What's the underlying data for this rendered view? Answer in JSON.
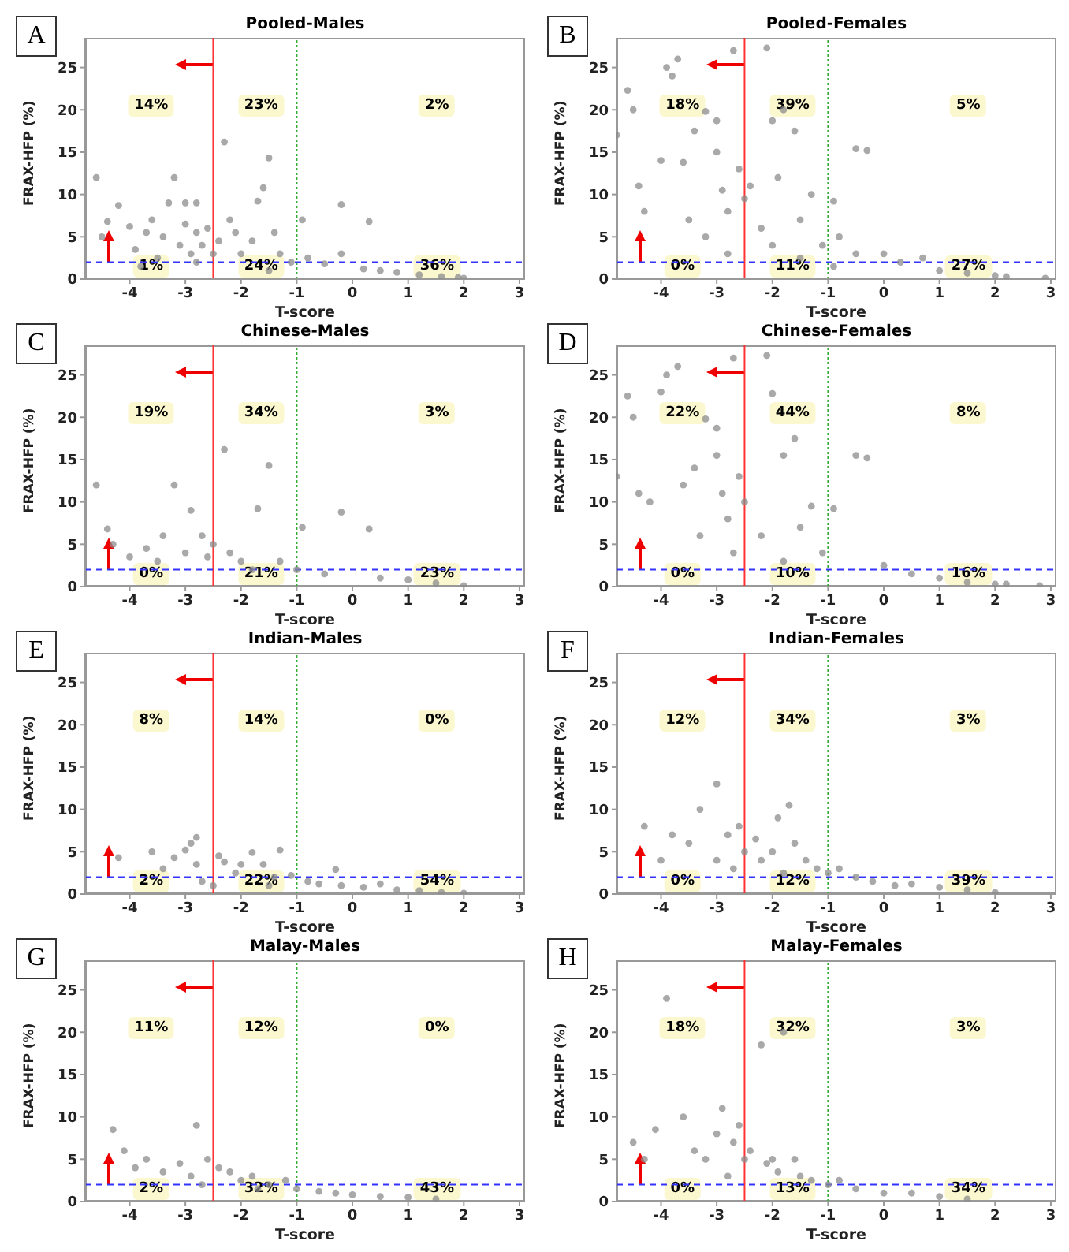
{
  "chart_data": [
    {
      "type": "scatter",
      "title": "Pooled-Males",
      "xlabel": "T-score",
      "ylabel": "FRAX-HFP (%)",
      "color": "#8c8c8c",
      "marker": "circle",
      "xlim": [
        -4.8,
        3.1
      ],
      "ylim": [
        0,
        28.5
      ],
      "xticks": [
        -4,
        -3,
        -2,
        -1,
        0,
        1,
        2,
        3
      ],
      "yticks": [
        0,
        5,
        10,
        15,
        20,
        25
      ],
      "ref_lines": [
        {
          "axis": "x",
          "value": -2.5,
          "color": "#ff3333",
          "line_style": "solid"
        },
        {
          "axis": "x",
          "value": -1,
          "color": "#33aa33",
          "line_style": "dotted"
        },
        {
          "axis": "y",
          "value": 2,
          "color": "#3333ff",
          "line_style": "dashed"
        }
      ],
      "annotations": [
        "A",
        "14%",
        "23%",
        "2%",
        "1%",
        "24%",
        "36%"
      ],
      "x": [
        -4.6,
        -4.4,
        -4.5,
        -4.2,
        -4.0,
        -3.9,
        -3.7,
        -3.6,
        -3.4,
        -3.3,
        -3.2,
        -3.1,
        -3.0,
        -3.0,
        -2.8,
        -2.9,
        -2.8,
        -2.7,
        -2.6,
        -2.5,
        -2.4,
        -2.3,
        -2.2,
        -2.1,
        -2.0,
        -1.8,
        -1.7,
        -1.6,
        -1.5,
        -1.4,
        -1.3,
        -1.1,
        -0.9,
        -0.8,
        -0.5,
        -0.2,
        -0.2,
        0.3,
        0.2,
        0.5,
        0.8,
        1.2,
        1.6,
        1.9,
        2.0,
        -1.5,
        -2.8,
        -3.5,
        -3.8
      ],
      "values": [
        12,
        6.8,
        5,
        8.7,
        6.2,
        3.5,
        5.5,
        7,
        5,
        9,
        12,
        4,
        6.5,
        9,
        9,
        3,
        5.5,
        4,
        6,
        3,
        4.5,
        16.2,
        7,
        5.5,
        3,
        4.5,
        9.2,
        10.8,
        14.3,
        5.5,
        3,
        2,
        7,
        2.5,
        1.8,
        8.8,
        3,
        6.8,
        1.2,
        1,
        0.8,
        0.5,
        0.3,
        0.2,
        0.1,
        1,
        2,
        2.5,
        1.5
      ]
    },
    {
      "type": "scatter",
      "title": "Pooled-Females",
      "xlabel": "T-score",
      "ylabel": "FRAX-HFP (%)",
      "color": "#8c8c8c",
      "marker": "circle",
      "xlim": [
        -4.8,
        3.1
      ],
      "ylim": [
        0,
        28.5
      ],
      "xticks": [
        -4,
        -3,
        -2,
        -1,
        0,
        1,
        2,
        3
      ],
      "yticks": [
        0,
        5,
        10,
        15,
        20,
        25
      ],
      "ref_lines": [
        {
          "axis": "x",
          "value": -2.5,
          "color": "#ff3333",
          "line_style": "solid"
        },
        {
          "axis": "x",
          "value": -1,
          "color": "#33aa33",
          "line_style": "dotted"
        },
        {
          "axis": "y",
          "value": 2,
          "color": "#3333ff",
          "line_style": "dashed"
        }
      ],
      "annotations": [
        "B",
        "18%",
        "39%",
        "5%",
        "0%",
        "11%",
        "27%"
      ],
      "x": [
        -4.8,
        -4.6,
        -4.5,
        -4.4,
        -4.3,
        -4.0,
        -3.9,
        -3.8,
        -3.7,
        -3.6,
        -3.4,
        -3.2,
        -3.0,
        -3.0,
        -2.9,
        -2.8,
        -2.7,
        -2.6,
        -2.5,
        -2.4,
        -2.2,
        -2.1,
        -2.0,
        -1.9,
        -1.8,
        -1.6,
        -1.5,
        -1.3,
        -1.1,
        -0.9,
        -0.8,
        -0.5,
        -0.3,
        -0.5,
        0.0,
        0.3,
        0.7,
        1.0,
        1.5,
        2.0,
        2.2,
        2.9,
        -3.2,
        -2.8,
        -2.0,
        -1.5,
        -0.9,
        -3.5
      ],
      "values": [
        17,
        22.3,
        20,
        11,
        8,
        14,
        25,
        24,
        26,
        13.8,
        17.5,
        19.8,
        18.7,
        15,
        10.5,
        8,
        27,
        13,
        9.5,
        11,
        6,
        27.3,
        18.7,
        12,
        20,
        17.5,
        7,
        10,
        4,
        9.2,
        5,
        15.4,
        15.2,
        3,
        3,
        2,
        2.5,
        1,
        0.7,
        0.4,
        0.3,
        0.1,
        5,
        3,
        4,
        2.5,
        1.5,
        7
      ]
    },
    {
      "type": "scatter",
      "title": "Chinese-Males",
      "xlabel": "T-score",
      "ylabel": "FRAX-HFP (%)",
      "color": "#8c8c8c",
      "marker": "circle",
      "xlim": [
        -4.8,
        3.1
      ],
      "ylim": [
        0,
        28.5
      ],
      "xticks": [
        -4,
        -3,
        -2,
        -1,
        0,
        1,
        2,
        3
      ],
      "yticks": [
        0,
        5,
        10,
        15,
        20,
        25
      ],
      "ref_lines": [
        {
          "axis": "x",
          "value": -2.5,
          "color": "#ff3333",
          "line_style": "solid"
        },
        {
          "axis": "x",
          "value": -1,
          "color": "#33aa33",
          "line_style": "dotted"
        },
        {
          "axis": "y",
          "value": 2,
          "color": "#3333ff",
          "line_style": "dashed"
        }
      ],
      "annotations": [
        "C",
        "19%",
        "34%",
        "3%",
        "0%",
        "21%",
        "23%"
      ],
      "x": [
        -4.6,
        -4.4,
        -4.3,
        -4.0,
        -3.7,
        -3.4,
        -3.2,
        -3.0,
        -2.9,
        -2.7,
        -2.6,
        -2.5,
        -2.3,
        -2.2,
        -2.0,
        -1.7,
        -1.5,
        -1.3,
        -1.0,
        -0.9,
        -0.5,
        -0.2,
        0.3,
        0.5,
        1.0,
        1.5,
        2.0,
        -1.8,
        -3.5
      ],
      "values": [
        12,
        6.8,
        5,
        3.5,
        4.5,
        6,
        12,
        4,
        9,
        6,
        3.5,
        5,
        16.2,
        4,
        3,
        9.2,
        14.3,
        3,
        2,
        7,
        1.5,
        8.8,
        6.8,
        1,
        0.8,
        0.4,
        0.1,
        2,
        3
      ]
    },
    {
      "type": "scatter",
      "title": "Chinese-Females",
      "xlabel": "T-score",
      "ylabel": "FRAX-HFP (%)",
      "color": "#8c8c8c",
      "marker": "circle",
      "xlim": [
        -4.8,
        3.1
      ],
      "ylim": [
        0,
        28.5
      ],
      "xticks": [
        -4,
        -3,
        -2,
        -1,
        0,
        1,
        2,
        3
      ],
      "yticks": [
        0,
        5,
        10,
        15,
        20,
        25
      ],
      "ref_lines": [
        {
          "axis": "x",
          "value": -2.5,
          "color": "#ff3333",
          "line_style": "solid"
        },
        {
          "axis": "x",
          "value": -1,
          "color": "#33aa33",
          "line_style": "dotted"
        },
        {
          "axis": "y",
          "value": 2,
          "color": "#3333ff",
          "line_style": "dashed"
        }
      ],
      "annotations": [
        "D",
        "22%",
        "44%",
        "8%",
        "0%",
        "10%",
        "16%"
      ],
      "x": [
        -4.8,
        -4.6,
        -4.5,
        -4.4,
        -4.2,
        -4.0,
        -3.9,
        -3.7,
        -3.6,
        -3.4,
        -3.2,
        -3.0,
        -3.0,
        -2.9,
        -2.8,
        -2.7,
        -2.6,
        -2.5,
        -2.2,
        -2.1,
        -2.0,
        -1.8,
        -1.6,
        -1.5,
        -1.3,
        -1.1,
        -0.9,
        -0.5,
        -0.3,
        0.0,
        0.5,
        1.0,
        1.5,
        2.0,
        2.2,
        2.8,
        -2.7,
        -1.8,
        -3.3
      ],
      "values": [
        13,
        22.5,
        20,
        11,
        10,
        23,
        25,
        26,
        12,
        14,
        19.8,
        18.7,
        15.5,
        11,
        8,
        27,
        13,
        10,
        6,
        27.3,
        22.8,
        15.5,
        17.5,
        7,
        9.5,
        4,
        9.2,
        15.5,
        15.2,
        2.5,
        1.5,
        1,
        0.5,
        0.3,
        0.3,
        0.1,
        4,
        3,
        6
      ]
    },
    {
      "type": "scatter",
      "title": "Indian-Males",
      "xlabel": "T-score",
      "ylabel": "FRAX-HFP (%)",
      "color": "#8c8c8c",
      "marker": "circle",
      "xlim": [
        -4.8,
        3.1
      ],
      "ylim": [
        0,
        28.5
      ],
      "xticks": [
        -4,
        -3,
        -2,
        -1,
        0,
        1,
        2,
        3
      ],
      "yticks": [
        0,
        5,
        10,
        15,
        20,
        25
      ],
      "ref_lines": [
        {
          "axis": "x",
          "value": -2.5,
          "color": "#ff3333",
          "line_style": "solid"
        },
        {
          "axis": "x",
          "value": -1,
          "color": "#33aa33",
          "line_style": "dotted"
        },
        {
          "axis": "y",
          "value": 2,
          "color": "#3333ff",
          "line_style": "dashed"
        }
      ],
      "annotations": [
        "E",
        "8%",
        "14%",
        "0%",
        "2%",
        "22%",
        "54%"
      ],
      "x": [
        -4.2,
        -3.6,
        -3.4,
        -3.2,
        -3.0,
        -2.9,
        -2.8,
        -2.8,
        -2.7,
        -2.4,
        -2.3,
        -2.1,
        -2.0,
        -1.8,
        -1.6,
        -1.4,
        -1.3,
        -1.1,
        -0.8,
        -0.6,
        -0.3,
        -0.2,
        0.2,
        0.5,
        0.8,
        1.2,
        1.6,
        2.0,
        -2.5,
        -1.5
      ],
      "values": [
        4.3,
        5,
        3,
        4.3,
        5.2,
        6,
        6.7,
        3.5,
        1.5,
        4.5,
        3.8,
        2.5,
        3.5,
        4.9,
        3.5,
        2,
        5.2,
        2.2,
        1.5,
        1.2,
        2.9,
        1,
        0.8,
        1.2,
        0.5,
        0.4,
        0.2,
        0.1,
        1,
        1
      ]
    },
    {
      "type": "scatter",
      "title": "Indian-Females",
      "xlabel": "T-score",
      "ylabel": "FRAX-HFP (%)",
      "color": "#8c8c8c",
      "marker": "circle",
      "xlim": [
        -4.8,
        3.1
      ],
      "ylim": [
        0,
        28.5
      ],
      "xticks": [
        -4,
        -3,
        -2,
        -1,
        0,
        1,
        2,
        3
      ],
      "yticks": [
        0,
        5,
        10,
        15,
        20,
        25
      ],
      "ref_lines": [
        {
          "axis": "x",
          "value": -2.5,
          "color": "#ff3333",
          "line_style": "solid"
        },
        {
          "axis": "x",
          "value": -1,
          "color": "#33aa33",
          "line_style": "dotted"
        },
        {
          "axis": "y",
          "value": 2,
          "color": "#3333ff",
          "line_style": "dashed"
        }
      ],
      "annotations": [
        "F",
        "12%",
        "34%",
        "3%",
        "0%",
        "12%",
        "39%"
      ],
      "x": [
        -4.3,
        -4.0,
        -3.8,
        -3.5,
        -3.3,
        -3.0,
        -3.0,
        -2.8,
        -2.6,
        -2.5,
        -2.3,
        -2.2,
        -2.0,
        -1.9,
        -1.7,
        -1.6,
        -1.4,
        -1.2,
        -1.0,
        -0.8,
        -0.5,
        -0.2,
        0.2,
        0.5,
        1.0,
        1.5,
        2.0,
        -2.7,
        -1.8
      ],
      "values": [
        8,
        4,
        7,
        6,
        10,
        13,
        4,
        7,
        8,
        5,
        6.5,
        4,
        5,
        9,
        10.5,
        6,
        4,
        3,
        2.5,
        3,
        2,
        1.5,
        1,
        1.2,
        0.8,
        0.5,
        0.2,
        3,
        2.5
      ]
    },
    {
      "type": "scatter",
      "title": "Malay-Males",
      "xlabel": "T-score",
      "ylabel": "FRAX-HFP (%)",
      "color": "#8c8c8c",
      "marker": "circle",
      "xlim": [
        -4.8,
        3.1
      ],
      "ylim": [
        0,
        28.5
      ],
      "xticks": [
        -4,
        -3,
        -2,
        -1,
        0,
        1,
        2,
        3
      ],
      "yticks": [
        0,
        5,
        10,
        15,
        20,
        25
      ],
      "ref_lines": [
        {
          "axis": "x",
          "value": -2.5,
          "color": "#ff3333",
          "line_style": "solid"
        },
        {
          "axis": "x",
          "value": -1,
          "color": "#33aa33",
          "line_style": "dotted"
        },
        {
          "axis": "y",
          "value": 2,
          "color": "#3333ff",
          "line_style": "dashed"
        }
      ],
      "annotations": [
        "G",
        "11%",
        "12%",
        "0%",
        "2%",
        "32%",
        "43%"
      ],
      "x": [
        -4.3,
        -4.1,
        -3.9,
        -3.7,
        -3.4,
        -3.1,
        -2.8,
        -2.9,
        -2.6,
        -2.4,
        -2.2,
        -2.0,
        -1.8,
        -1.5,
        -1.2,
        -1.0,
        -0.6,
        -0.3,
        0.0,
        0.5,
        1.0,
        1.5,
        -2.7,
        -1.7
      ],
      "values": [
        8.5,
        6,
        4,
        5,
        3.5,
        4.5,
        9,
        3,
        5,
        4,
        3.5,
        2.5,
        3,
        2,
        2.5,
        1.5,
        1.2,
        1,
        0.8,
        0.6,
        0.5,
        0.3,
        2,
        1.5
      ]
    },
    {
      "type": "scatter",
      "title": "Malay-Females",
      "xlabel": "T-score",
      "ylabel": "FRAX-HFP (%)",
      "color": "#8c8c8c",
      "marker": "circle",
      "xlim": [
        -4.8,
        3.1
      ],
      "ylim": [
        0,
        28.5
      ],
      "xticks": [
        -4,
        -3,
        -2,
        -1,
        0,
        1,
        2,
        3
      ],
      "yticks": [
        0,
        5,
        10,
        15,
        20,
        25
      ],
      "ref_lines": [
        {
          "axis": "x",
          "value": -2.5,
          "color": "#ff3333",
          "line_style": "solid"
        },
        {
          "axis": "x",
          "value": -1,
          "color": "#33aa33",
          "line_style": "dotted"
        },
        {
          "axis": "y",
          "value": 2,
          "color": "#3333ff",
          "line_style": "dashed"
        }
      ],
      "annotations": [
        "H",
        "18%",
        "32%",
        "3%",
        "0%",
        "13%",
        "34%"
      ],
      "x": [
        -4.5,
        -4.3,
        -4.1,
        -3.9,
        -3.6,
        -3.4,
        -3.2,
        -3.0,
        -2.9,
        -2.7,
        -2.6,
        -2.5,
        -2.4,
        -2.2,
        -2.1,
        -2.0,
        -1.9,
        -1.8,
        -1.6,
        -1.5,
        -1.3,
        -1.0,
        -0.8,
        -0.5,
        0.0,
        0.5,
        1.0,
        1.5,
        -2.8
      ],
      "values": [
        7,
        5,
        8.5,
        24,
        10,
        6,
        5,
        8,
        11,
        7,
        9,
        5,
        6,
        18.5,
        4.5,
        5,
        3.5,
        20,
        5,
        3,
        2.5,
        2,
        2.5,
        1.5,
        1,
        1,
        0.6,
        0.3,
        3
      ]
    }
  ]
}
